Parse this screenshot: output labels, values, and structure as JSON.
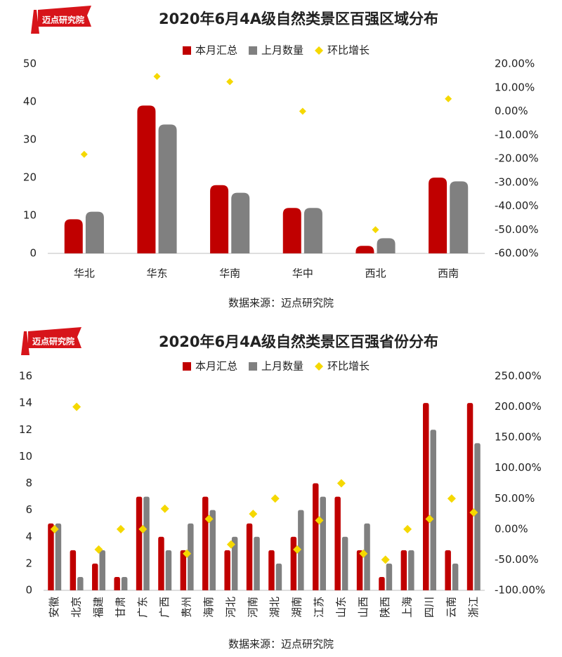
{
  "chart_data": [
    {
      "type": "bar",
      "title": "2020年6月4A级自然类景区百强区域分布",
      "logo": "迈点研究院",
      "source": "数据来源：迈点研究院",
      "categories": [
        "华北",
        "华东",
        "华南",
        "华中",
        "西北",
        "西南"
      ],
      "series": [
        {
          "name": "本月汇总",
          "color": "#c00000",
          "values": [
            9,
            39,
            18,
            12,
            2,
            20
          ]
        },
        {
          "name": "上月数量",
          "color": "#808080",
          "values": [
            11,
            34,
            16,
            12,
            4,
            19
          ]
        },
        {
          "name": "环比增长",
          "color": "#f5d800",
          "axis": "y2",
          "values": [
            -18.18,
            14.71,
            12.5,
            0,
            -50,
            5.26
          ]
        }
      ],
      "ylim": [
        0,
        50
      ],
      "yticks": [
        0,
        10,
        20,
        30,
        40,
        50
      ],
      "y2lim": [
        -60,
        20
      ],
      "y2ticks": [
        {
          "value": -60,
          "label": "-60.00%"
        },
        {
          "value": -50,
          "label": "-50.00%"
        },
        {
          "value": -40,
          "label": "-40.00%"
        },
        {
          "value": -30,
          "label": "-30.00%"
        },
        {
          "value": -20,
          "label": "-20.00%"
        },
        {
          "value": -10,
          "label": "-10.00%"
        },
        {
          "value": 0,
          "label": "0.00%"
        },
        {
          "value": 10,
          "label": "10.00%"
        },
        {
          "value": 20,
          "label": "20.00%"
        }
      ],
      "legend": "top",
      "grid": false
    },
    {
      "type": "bar",
      "title": "2020年6月4A级自然类景区百强省份分布",
      "logo": "迈点研究院",
      "source": "数据来源：迈点研究院",
      "categories": [
        "安徽",
        "北京",
        "福建",
        "甘肃",
        "广东",
        "广西",
        "贵州",
        "海南",
        "河北",
        "河南",
        "湖北",
        "湖南",
        "江苏",
        "山东",
        "山西",
        "陕西",
        "上海",
        "四川",
        "云南",
        "浙江"
      ],
      "series": [
        {
          "name": "本月汇总",
          "color": "#c00000",
          "values": [
            5,
            3,
            2,
            1,
            7,
            4,
            3,
            7,
            3,
            5,
            3,
            4,
            8,
            7,
            3,
            1,
            3,
            14,
            3,
            14
          ]
        },
        {
          "name": "上月数量",
          "color": "#808080",
          "values": [
            5,
            1,
            3,
            1,
            7,
            3,
            5,
            6,
            4,
            4,
            2,
            6,
            7,
            4,
            5,
            2,
            3,
            12,
            2,
            11
          ]
        },
        {
          "name": "环比增长",
          "color": "#f5d800",
          "axis": "y2",
          "values": [
            0,
            200,
            -33.33,
            0,
            0,
            33.33,
            -40,
            16.67,
            -25,
            25,
            50,
            -33.33,
            14.29,
            75,
            -40,
            -50,
            0,
            16.67,
            50,
            27.27
          ]
        }
      ],
      "ylim": [
        0,
        16
      ],
      "yticks": [
        0,
        2,
        4,
        6,
        8,
        10,
        12,
        14,
        16
      ],
      "y2lim": [
        -100,
        250
      ],
      "y2ticks": [
        {
          "value": -100,
          "label": "-100.00%"
        },
        {
          "value": -50,
          "label": "-50.00%"
        },
        {
          "value": 0,
          "label": "0.00%"
        },
        {
          "value": 50,
          "label": "50.00%"
        },
        {
          "value": 100,
          "label": "100.00%"
        },
        {
          "value": 150,
          "label": "150.00%"
        },
        {
          "value": 200,
          "label": "200.00%"
        },
        {
          "value": 250,
          "label": "250.00%"
        }
      ],
      "legend": "top",
      "grid": false
    }
  ]
}
